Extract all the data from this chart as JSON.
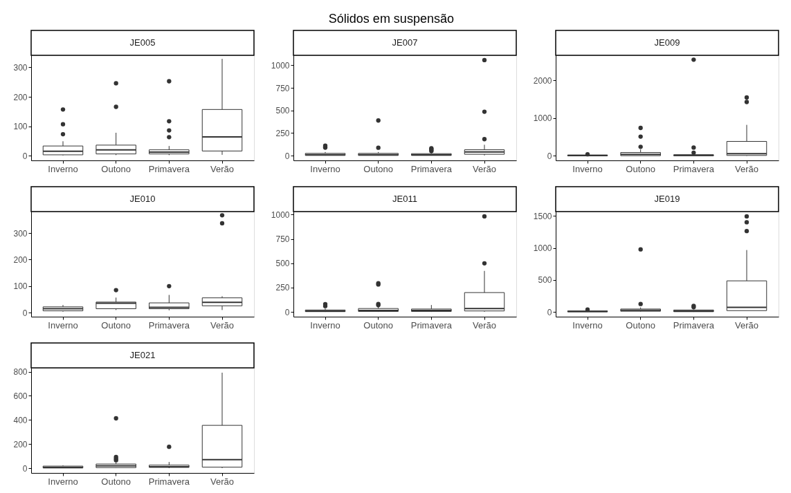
{
  "chart_data": [
    {
      "type": "other",
      "title": "Sólidos em suspensão"
    },
    {
      "type": "box",
      "subtitle": "JE005",
      "categories": [
        "Inverno",
        "Outono",
        "Primavera",
        "Verão"
      ],
      "ylim": [
        -16,
        341
      ],
      "yticks": [
        0,
        100,
        200,
        300
      ],
      "grid": false,
      "series": [
        {
          "color": "#333333",
          "boxes": [
            {
              "low": 1,
              "q1": 3,
              "median": 15,
              "q3": 33,
              "high": 49,
              "outliers": [
                73,
                107,
                157
              ]
            },
            {
              "low": 2,
              "q1": 6,
              "median": 20,
              "q3": 36,
              "high": 78,
              "outliers": [
                166,
                246
              ]
            },
            {
              "low": 2,
              "q1": 6,
              "median": 12,
              "q3": 20,
              "high": 33,
              "outliers": [
                63,
                86,
                117,
                253
              ]
            },
            {
              "low": 3,
              "q1": 16,
              "median": 64,
              "q3": 157,
              "high": 329
            }
          ]
        }
      ]
    },
    {
      "type": "box",
      "subtitle": "JE007",
      "categories": [
        "Inverno",
        "Outono",
        "Primavera",
        "Verão"
      ],
      "ylim": [
        -53,
        1110
      ],
      "yticks": [
        0,
        250,
        500,
        750,
        1000
      ],
      "grid": false,
      "series": [
        {
          "color": "#333333",
          "boxes": [
            {
              "low": 0,
              "q1": 2,
              "median": 10,
              "q3": 25,
              "high": 40,
              "outliers": [
                88,
                97,
                110
              ]
            },
            {
              "low": 0,
              "q1": 2,
              "median": 10,
              "q3": 25,
              "high": 40,
              "outliers": [
                87,
                389
              ]
            },
            {
              "low": 0,
              "q1": 2,
              "median": 8,
              "q3": 22,
              "high": 35,
              "outliers": [
                50,
                62,
                72,
                82
              ]
            },
            {
              "low": 2,
              "q1": 15,
              "median": 40,
              "q3": 65,
              "high": 120,
              "outliers": [
                182,
                486,
                1057
              ]
            }
          ]
        }
      ]
    },
    {
      "type": "box",
      "subtitle": "JE009",
      "categories": [
        "Inverno",
        "Outono",
        "Primavera",
        "Verão"
      ],
      "ylim": [
        -120,
        2660
      ],
      "yticks": [
        0,
        1000,
        2000
      ],
      "grid": false,
      "series": [
        {
          "color": "#333333",
          "boxes": [
            {
              "low": 0,
              "q1": 3,
              "median": 10,
              "q3": 25,
              "high": 35,
              "outliers": [
                42
              ]
            },
            {
              "low": 0,
              "q1": 5,
              "median": 40,
              "q3": 90,
              "high": 170,
              "outliers": [
                240,
                510,
                740
              ]
            },
            {
              "low": 0,
              "q1": 3,
              "median": 15,
              "q3": 30,
              "high": 40,
              "outliers": [
                85,
                220,
                2545
              ]
            },
            {
              "low": 0,
              "q1": 12,
              "median": 60,
              "q3": 383,
              "high": 820,
              "outliers": [
                1425,
                1545
              ]
            }
          ]
        }
      ]
    },
    {
      "type": "box",
      "subtitle": "JE010",
      "categories": [
        "Inverno",
        "Outono",
        "Primavera",
        "Verão"
      ],
      "ylim": [
        -15,
        381
      ],
      "yticks": [
        0,
        100,
        200,
        300
      ],
      "grid": false,
      "series": [
        {
          "color": "#333333",
          "boxes": [
            {
              "low": 4,
              "q1": 7,
              "median": 15,
              "q3": 22,
              "high": 29
            },
            {
              "low": 10,
              "q1": 15,
              "median": 36,
              "q3": 40,
              "high": 57,
              "outliers": [
                85
              ]
            },
            {
              "low": 9,
              "q1": 15,
              "median": 20,
              "q3": 37,
              "high": 67,
              "outliers": [
                100
              ]
            },
            {
              "low": 10,
              "q1": 26,
              "median": 39,
              "q3": 56,
              "high": 62,
              "outliers": [
                337,
                367
              ]
            }
          ]
        }
      ]
    },
    {
      "type": "box",
      "subtitle": "JE011",
      "categories": [
        "Inverno",
        "Outono",
        "Primavera",
        "Verão"
      ],
      "ylim": [
        -49,
        1032
      ],
      "yticks": [
        0,
        250,
        500,
        750,
        1000
      ],
      "grid": false,
      "series": [
        {
          "color": "#333333",
          "boxes": [
            {
              "low": 0,
              "q1": 3,
              "median": 8,
              "q3": 20,
              "high": 35,
              "outliers": [
                60,
                80
              ]
            },
            {
              "low": 0,
              "q1": 5,
              "median": 15,
              "q3": 35,
              "high": 50,
              "outliers": [
                70,
                82,
                282,
                294
              ]
            },
            {
              "low": 0,
              "q1": 5,
              "median": 15,
              "q3": 30,
              "high": 71
            },
            {
              "low": 2,
              "q1": 10,
              "median": 34,
              "q3": 199,
              "high": 422,
              "outliers": [
                500,
                983
              ]
            }
          ]
        }
      ]
    },
    {
      "type": "box",
      "subtitle": "JE019",
      "categories": [
        "Inverno",
        "Outono",
        "Primavera",
        "Verão"
      ],
      "ylim": [
        -75,
        1570
      ],
      "yticks": [
        0,
        500,
        1000,
        1500
      ],
      "grid": false,
      "series": [
        {
          "color": "#333333",
          "boxes": [
            {
              "low": 0,
              "q1": 2,
              "median": 5,
              "q3": 15,
              "high": 25,
              "outliers": [
                36
              ]
            },
            {
              "low": 2,
              "q1": 10,
              "median": 25,
              "q3": 45,
              "high": 70,
              "outliers": [
                123,
                978
              ]
            },
            {
              "low": 0,
              "q1": 3,
              "median": 12,
              "q3": 30,
              "high": 40,
              "outliers": [
                75,
                95
              ]
            },
            {
              "low": 20,
              "q1": 20,
              "median": 72,
              "q3": 486,
              "high": 968,
              "outliers": [
                1265,
                1403,
                1495
              ]
            }
          ]
        }
      ]
    },
    {
      "type": "box",
      "subtitle": "JE021",
      "categories": [
        "Inverno",
        "Outono",
        "Primavera",
        "Verão"
      ],
      "ylim": [
        -40,
        832
      ],
      "yticks": [
        0,
        200,
        400,
        600,
        800
      ],
      "grid": false,
      "series": [
        {
          "color": "#333333",
          "boxes": [
            {
              "low": 0,
              "q1": 1,
              "median": 6,
              "q3": 17,
              "high": 23
            },
            {
              "low": 0,
              "q1": 4,
              "median": 19,
              "q3": 34,
              "high": 45,
              "outliers": [
                65,
                78,
                92,
                413
              ]
            },
            {
              "low": 0,
              "q1": 6,
              "median": 11,
              "q3": 25,
              "high": 51,
              "outliers": [
                177
              ]
            },
            {
              "low": 0,
              "q1": 8,
              "median": 70,
              "q3": 355,
              "high": 792
            }
          ]
        }
      ]
    }
  ]
}
